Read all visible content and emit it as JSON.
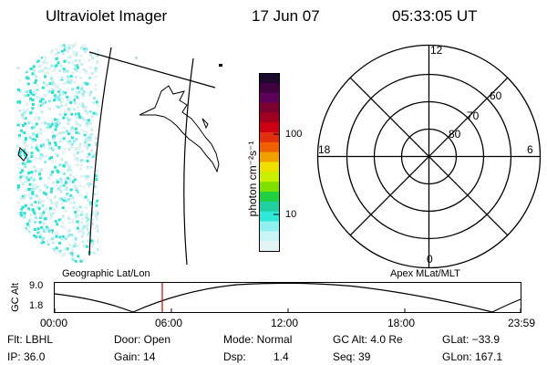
{
  "header": {
    "instrument": "Ultraviolet Imager",
    "date": "17 Jun 07",
    "time": "05:33:05 UT"
  },
  "geo_panel": {
    "label": "Geographic Lat/Lon"
  },
  "colorbar": {
    "label": "photon cm⁻²s⁻¹",
    "tick_100": "100",
    "tick_10": "10",
    "colors_top_to_bottom": [
      "#1a0a2e",
      "#400040",
      "#5c0058",
      "#7a0030",
      "#a00020",
      "#cc0010",
      "#e03010",
      "#f06000",
      "#f0a000",
      "#f0e000",
      "#c8f000",
      "#80e000",
      "#20d040",
      "#20d0a0",
      "#30e8d8",
      "#90f0f0",
      "#c8f4f4",
      "#e4f4f4"
    ]
  },
  "polar_panel": {
    "label": "Apex MLat/MLT",
    "mlt_top": "12",
    "mlt_left": "18",
    "mlt_right": "6",
    "mlt_bottom": "0",
    "ring_60": "60",
    "ring_70": "70",
    "ring_80": "80"
  },
  "altitude_plot": {
    "ylabel": "GC Alt",
    "ytick_top": "9.0",
    "ytick_bottom": "1.8",
    "xticks": [
      "00:00",
      "06:00",
      "12:00",
      "18:00",
      "23:59"
    ],
    "marker_color": "#cc0000"
  },
  "status": {
    "flt": "Flt: LBHL",
    "ip": "IP: 36.0",
    "door": "Door: Open",
    "gain": "Gain: 14",
    "mode": "Mode: Normal",
    "dsp_label": "Dsp:",
    "dsp_value": "1.4",
    "gc_alt": "GC Alt: 4.0 Re",
    "seq": "Seq: 39",
    "glat": "GLat: −33.9",
    "glon": "GLon: 167.1"
  }
}
